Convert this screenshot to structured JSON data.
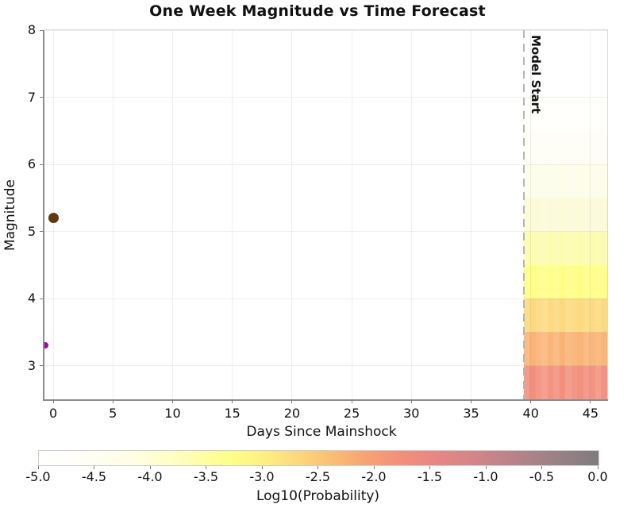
{
  "title": "One Week Magnitude vs Time Forecast",
  "chart_data": {
    "type": "heatmap",
    "title": "One Week Magnitude vs Time Forecast",
    "xlabel": "Days Since Mainshock",
    "ylabel": "Magnitude",
    "xlim": [
      -0.8,
      46.4
    ],
    "ylim": [
      2.5,
      8
    ],
    "x_ticks": [
      0,
      5,
      10,
      15,
      20,
      25,
      30,
      35,
      40,
      45
    ],
    "y_ticks": [
      3,
      4,
      5,
      6,
      7,
      8
    ],
    "grid": true,
    "model_start_label": "Model Start",
    "model_start_day": 39.4,
    "forecast_window_days": [
      39.4,
      46.4
    ],
    "heatmap_rows": [
      {
        "mag_min": 2.5,
        "mag_max": 3.0,
        "log10_prob": -1.6,
        "color": "#f38e7b"
      },
      {
        "mag_min": 3.0,
        "mag_max": 3.5,
        "log10_prob": -2.1,
        "color": "#fab273"
      },
      {
        "mag_min": 3.5,
        "mag_max": 4.0,
        "log10_prob": -2.6,
        "color": "#fcd97d"
      },
      {
        "mag_min": 4.0,
        "mag_max": 4.5,
        "log10_prob": -3.1,
        "color": "#fefe84"
      },
      {
        "mag_min": 4.5,
        "mag_max": 5.0,
        "log10_prob": -3.6,
        "color": "#fcfcad"
      },
      {
        "mag_min": 5.0,
        "mag_max": 5.5,
        "log10_prob": -4.0,
        "color": "#fbfbd7"
      },
      {
        "mag_min": 5.5,
        "mag_max": 6.0,
        "log10_prob": -4.3,
        "color": "#fdfdea"
      },
      {
        "mag_min": 6.0,
        "mag_max": 6.5,
        "log10_prob": -4.6,
        "color": "#fefef5"
      },
      {
        "mag_min": 6.5,
        "mag_max": 7.0,
        "log10_prob": -4.8,
        "color": "#fffffb"
      },
      {
        "mag_min": 7.0,
        "mag_max": 8.0,
        "log10_prob": -5.0,
        "color": "#ffffff"
      }
    ],
    "heatmap_column_white_opacity": [
      0.12,
      0.02,
      0.1,
      0.16,
      0.05,
      0.12,
      0.02,
      0.14,
      0.08,
      0.03,
      0.12,
      0.06,
      0.14,
      0.04
    ],
    "events": [
      {
        "name": "mainshock-dot",
        "day": 0.0,
        "magnitude": 5.2,
        "color": "#5e3a10",
        "diameter": 13
      },
      {
        "name": "small-event-dot",
        "day": -0.7,
        "magnitude": 3.3,
        "color": "#990d99",
        "diameter": 8
      }
    ],
    "colorbar": {
      "label": "Log10(Probability)",
      "tick_labels": [
        "-5.0",
        "-4.5",
        "-4.0",
        "-3.5",
        "-3.0",
        "-2.5",
        "-2.0",
        "-1.5",
        "-1.0",
        "-0.5",
        "0.0"
      ],
      "value_range": [
        -5.0,
        0.0
      ],
      "gradient_stops": [
        {
          "pos": 0.0,
          "color": "#ffffff"
        },
        {
          "pos": 0.08,
          "color": "#fffef6"
        },
        {
          "pos": 0.16,
          "color": "#fefee6"
        },
        {
          "pos": 0.24,
          "color": "#fefec4"
        },
        {
          "pos": 0.3,
          "color": "#fefea0"
        },
        {
          "pos": 0.34,
          "color": "#fefe8a"
        },
        {
          "pos": 0.4,
          "color": "#fdf083"
        },
        {
          "pos": 0.46,
          "color": "#fcd97c"
        },
        {
          "pos": 0.52,
          "color": "#fbbf75"
        },
        {
          "pos": 0.58,
          "color": "#f8a473"
        },
        {
          "pos": 0.64,
          "color": "#f3907a"
        },
        {
          "pos": 0.7,
          "color": "#ea8782"
        },
        {
          "pos": 0.78,
          "color": "#d28589"
        },
        {
          "pos": 0.86,
          "color": "#b28389"
        },
        {
          "pos": 0.93,
          "color": "#978286"
        },
        {
          "pos": 1.0,
          "color": "#7f7b7f"
        }
      ]
    }
  }
}
